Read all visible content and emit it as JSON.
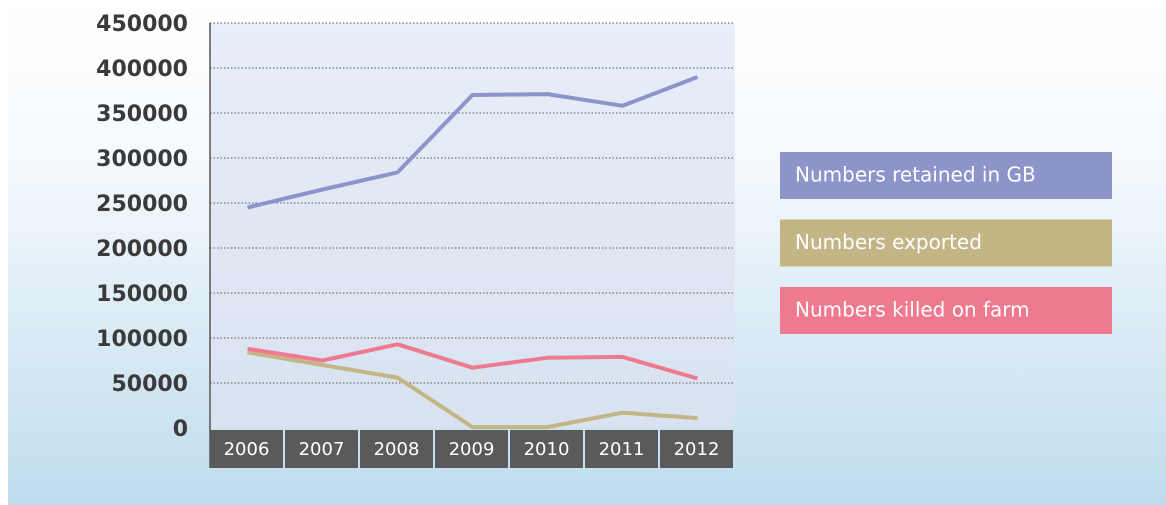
{
  "chart_data": {
    "type": "line",
    "categories": [
      "2006",
      "2007",
      "2008",
      "2009",
      "2010",
      "2011",
      "2012"
    ],
    "series": [
      {
        "name": "Numbers retained in GB",
        "color": "#8d94c9",
        "values": [
          245000,
          265000,
          284000,
          370000,
          371000,
          358000,
          390000
        ]
      },
      {
        "name": "Numbers exported",
        "color": "#c4b587",
        "values": [
          84000,
          70000,
          56000,
          1000,
          1000,
          17000,
          11000
        ]
      },
      {
        "name": "Numbers killed on farm",
        "color": "#ef7a8f",
        "values": [
          88000,
          75000,
          93000,
          67000,
          78000,
          79000,
          55000
        ]
      }
    ],
    "ylim": [
      0,
      450000
    ],
    "yticks": [
      0,
      50000,
      100000,
      150000,
      200000,
      250000,
      300000,
      350000,
      400000,
      450000
    ],
    "grid": true
  }
}
